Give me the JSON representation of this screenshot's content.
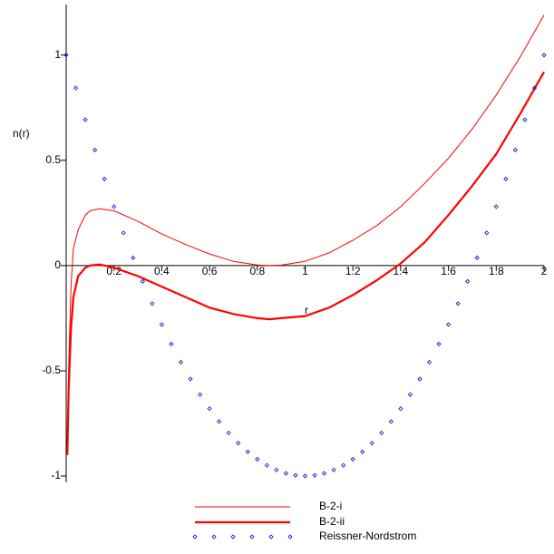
{
  "chart_data": {
    "type": "line",
    "x_label": "r",
    "y_label": "n(r)",
    "xlim": [
      0,
      2
    ],
    "ylim": [
      -1.03,
      1.24
    ],
    "xticks": [
      0.2,
      0.4,
      0.6,
      0.8,
      1,
      1.2,
      1.4,
      1.6,
      1.8,
      2
    ],
    "yticks": [
      -1,
      -0.5,
      0,
      0.5,
      1
    ],
    "series": [
      {
        "name": "B-2-i",
        "color": "#ff0000",
        "style": "thin",
        "x": [
          0.005,
          0.01,
          0.02,
          0.03,
          0.05,
          0.08,
          0.1,
          0.14,
          0.2,
          0.3,
          0.4,
          0.5,
          0.6,
          0.7,
          0.8,
          0.85,
          0.9,
          1.0,
          1.1,
          1.2,
          1.3,
          1.4,
          1.5,
          1.6,
          1.7,
          1.8,
          1.9,
          2.0
        ],
        "values": [
          -0.88,
          -0.5,
          -0.1,
          0.08,
          0.17,
          0.24,
          0.26,
          0.27,
          0.26,
          0.21,
          0.15,
          0.1,
          0.055,
          0.02,
          0.003,
          0,
          0.002,
          0.02,
          0.06,
          0.12,
          0.19,
          0.28,
          0.39,
          0.51,
          0.65,
          0.81,
          0.99,
          1.19
        ]
      },
      {
        "name": "B-2-ii",
        "color": "#ff0000",
        "style": "thick",
        "x": [
          0.005,
          0.01,
          0.02,
          0.03,
          0.05,
          0.08,
          0.1,
          0.14,
          0.2,
          0.3,
          0.4,
          0.5,
          0.6,
          0.7,
          0.8,
          0.85,
          0.9,
          1.0,
          1.1,
          1.2,
          1.3,
          1.4,
          1.5,
          1.6,
          1.7,
          1.8,
          1.9,
          2.0
        ],
        "values": [
          -0.9,
          -0.6,
          -0.3,
          -0.15,
          -0.05,
          -0.01,
          0,
          0.005,
          -0.01,
          -0.05,
          -0.1,
          -0.15,
          -0.2,
          -0.23,
          -0.25,
          -0.255,
          -0.25,
          -0.24,
          -0.2,
          -0.14,
          -0.07,
          0.01,
          0.11,
          0.24,
          0.38,
          0.53,
          0.72,
          0.92
        ]
      },
      {
        "name": "Reissner-Nordstrom",
        "color": "#0000cc",
        "style": "points",
        "x": [
          0,
          0.04,
          0.08,
          0.12,
          0.16,
          0.2,
          0.24,
          0.28,
          0.32,
          0.36,
          0.4,
          0.44,
          0.48,
          0.52,
          0.56,
          0.6,
          0.64,
          0.68,
          0.72,
          0.76,
          0.8,
          0.84,
          0.88,
          0.92,
          0.96,
          1,
          1.04,
          1.08,
          1.12,
          1.16,
          1.2,
          1.24,
          1.28,
          1.32,
          1.36,
          1.4,
          1.44,
          1.48,
          1.52,
          1.56,
          1.6,
          1.64,
          1.68,
          1.72,
          1.76,
          1.8,
          1.84,
          1.88,
          1.92,
          1.96,
          2
        ],
        "values": [
          1,
          0.8432,
          0.6928,
          0.5488,
          0.4112,
          0.28,
          0.1552,
          0.0368,
          -0.0752,
          -0.1808,
          -0.28,
          -0.3728,
          -0.4592,
          -0.5392,
          -0.6128,
          -0.68,
          -0.7408,
          -0.7952,
          -0.8432,
          -0.8848,
          -0.92,
          -0.9488,
          -0.9712,
          -0.9872,
          -0.9968,
          -1,
          -0.9968,
          -0.9872,
          -0.9712,
          -0.9488,
          -0.92,
          -0.8848,
          -0.8432,
          -0.7952,
          -0.7408,
          -0.68,
          -0.6128,
          -0.5392,
          -0.4592,
          -0.3728,
          -0.28,
          -0.1808,
          -0.0752,
          0.0368,
          0.1552,
          0.28,
          0.4112,
          0.5488,
          0.6928,
          0.8432,
          1
        ]
      }
    ]
  }
}
